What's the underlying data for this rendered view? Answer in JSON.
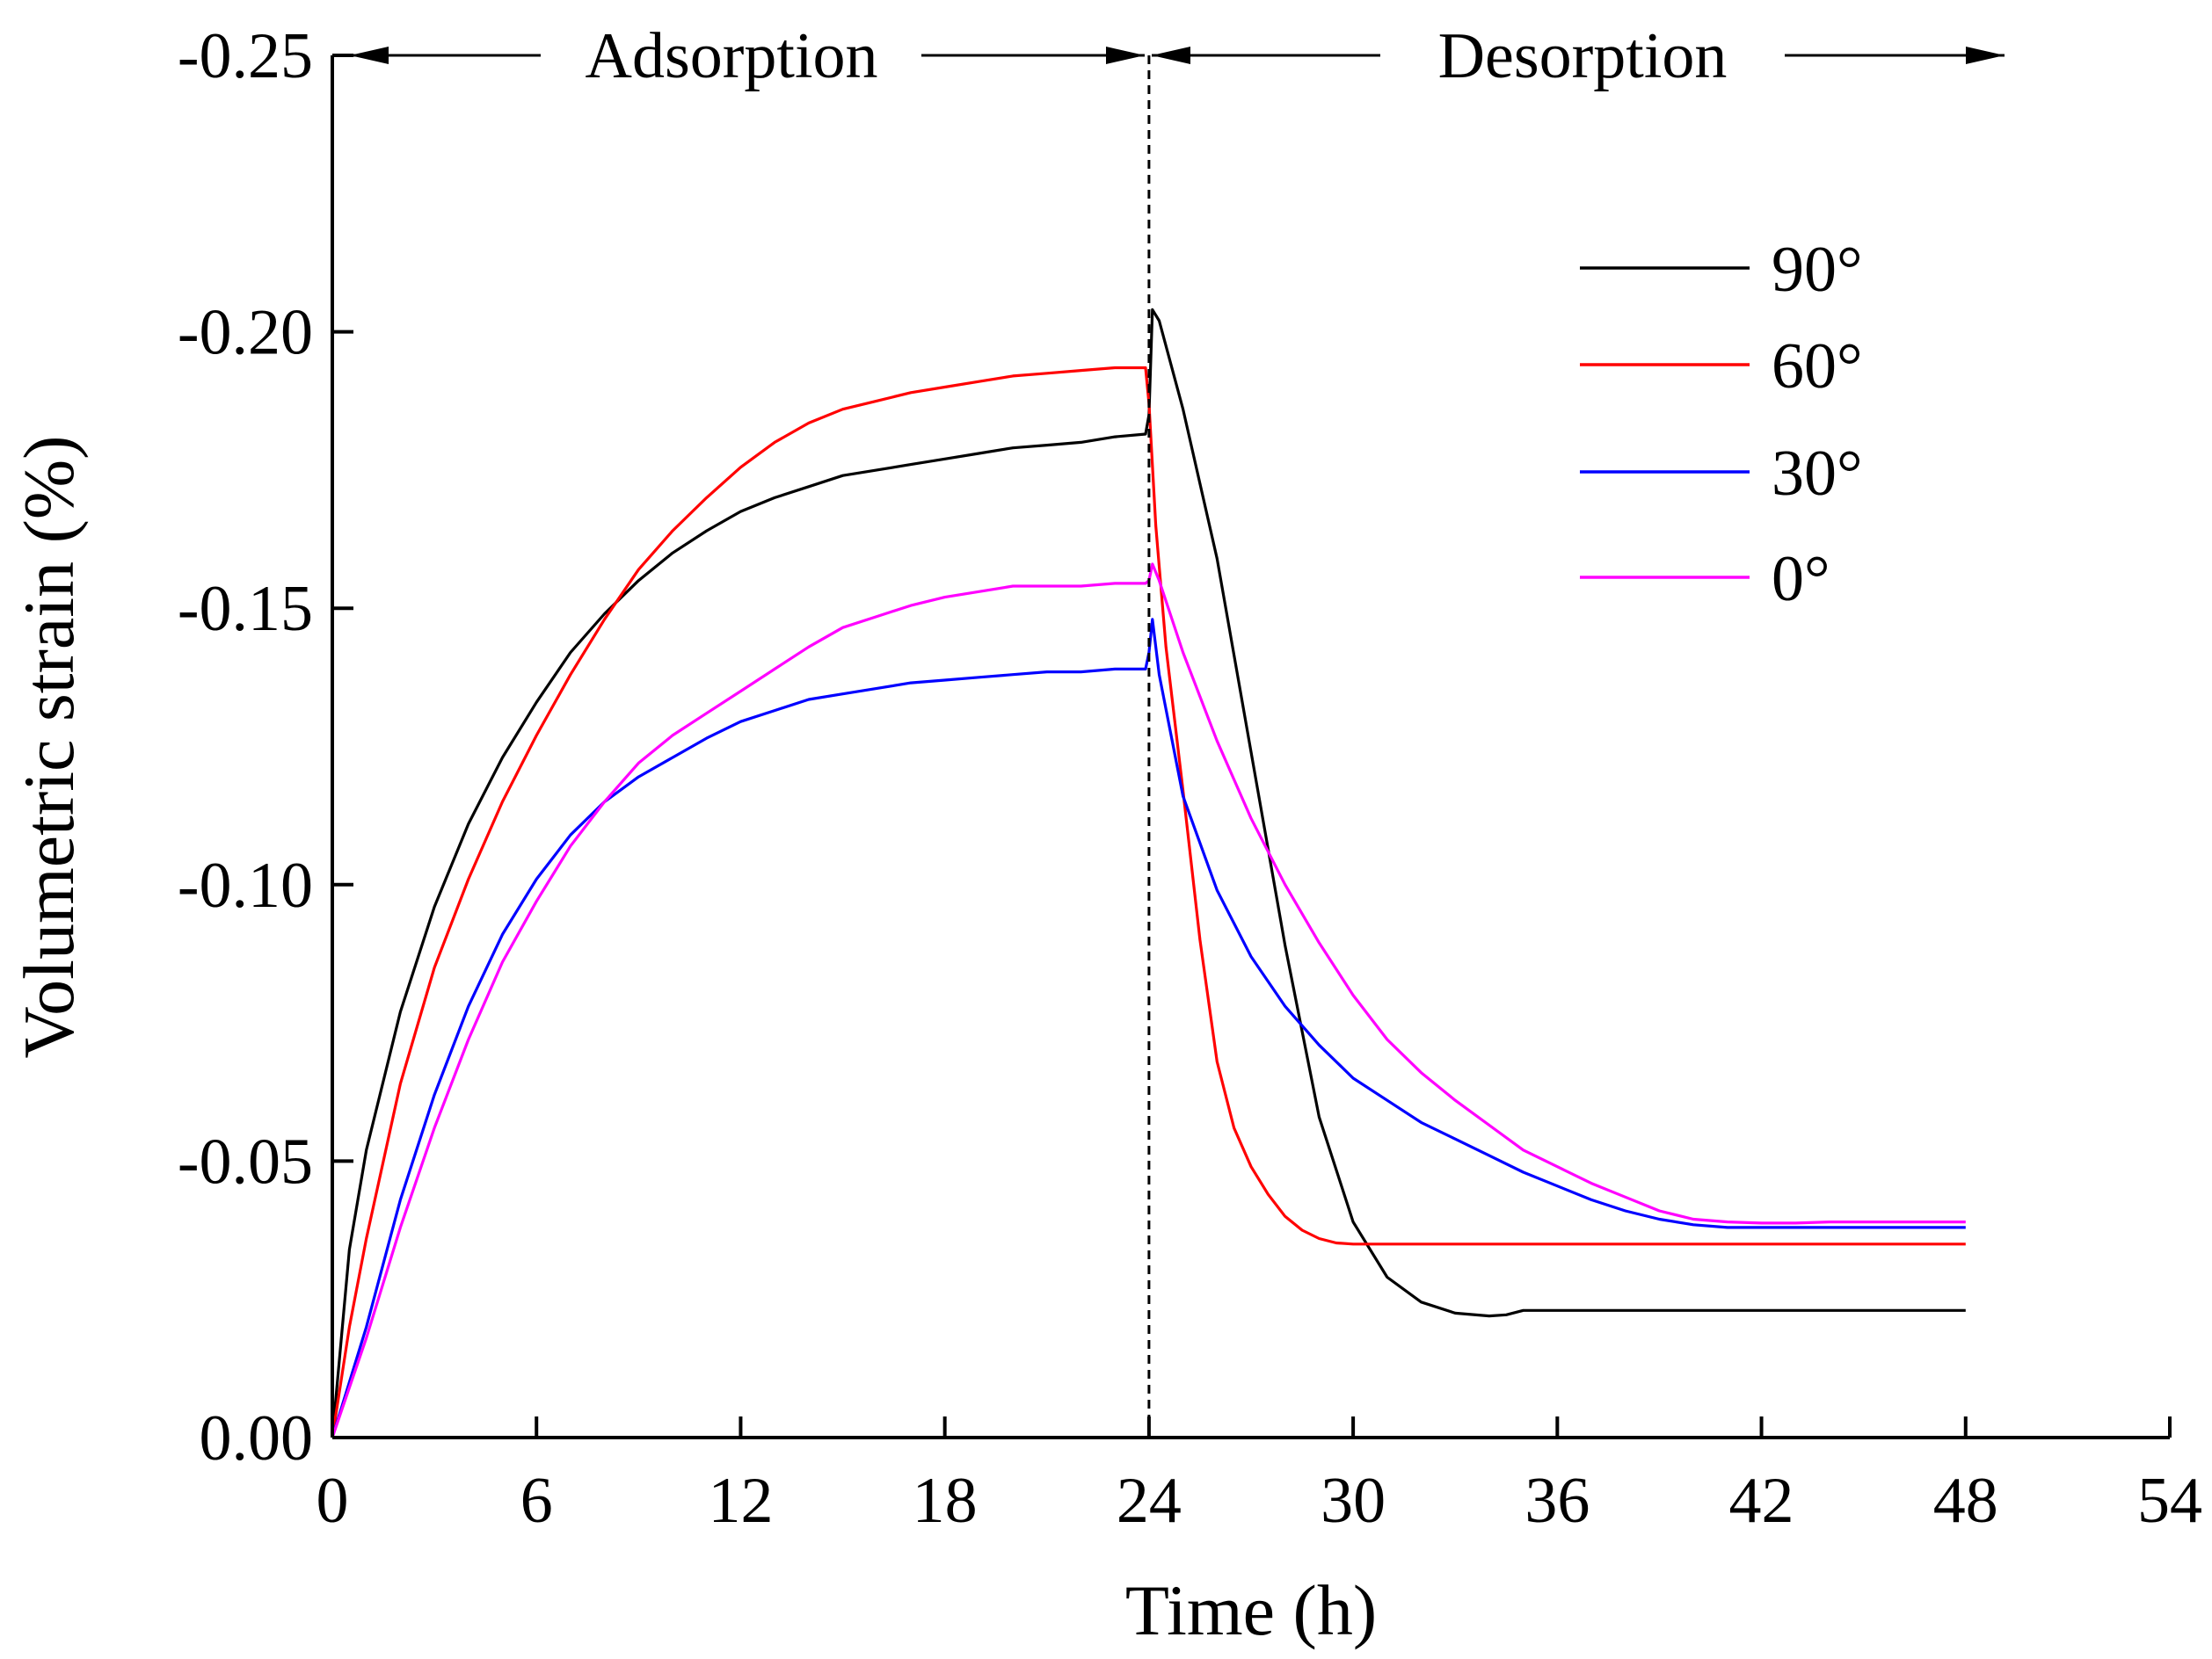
{
  "chart_data": {
    "type": "line",
    "title": "",
    "xlabel": "Time (h)",
    "ylabel": "Volumetric strain (%)",
    "xlim": [
      0,
      54
    ],
    "ylim": [
      0,
      -0.25
    ],
    "xticks": [
      0,
      6,
      12,
      18,
      24,
      30,
      36,
      42,
      48,
      54
    ],
    "xtick_labels": [
      "0",
      "6",
      "12",
      "18",
      "24",
      "30",
      "36",
      "42",
      "48",
      "54"
    ],
    "yticks": [
      0,
      -0.05,
      -0.1,
      -0.15,
      -0.2,
      -0.25
    ],
    "ytick_labels": [
      "0.00",
      "-0.05",
      "-0.10",
      "-0.15",
      "-0.20",
      "-0.25"
    ],
    "grid": false,
    "legend_position": "top-right",
    "annotations": {
      "divider_x": 24,
      "adsorption_label": "Adsorption",
      "desorption_label": "Desorption"
    },
    "series": [
      {
        "name": "90°",
        "color": "#000000",
        "x": [
          0,
          0.5,
          1,
          2,
          3,
          4,
          5,
          6,
          7,
          8,
          9,
          10,
          11,
          12,
          13,
          14,
          15,
          16,
          17,
          18,
          19,
          20,
          21,
          22,
          23,
          23.9,
          24.0,
          24.1,
          24.3,
          25,
          26,
          27,
          28,
          29,
          30,
          31,
          32,
          33,
          34,
          34.5,
          35,
          36,
          40,
          44,
          48
        ],
        "y": [
          0,
          -0.034,
          -0.052,
          -0.077,
          -0.096,
          -0.111,
          -0.123,
          -0.133,
          -0.142,
          -0.149,
          -0.155,
          -0.16,
          -0.164,
          -0.1675,
          -0.17,
          -0.172,
          -0.174,
          -0.175,
          -0.176,
          -0.177,
          -0.178,
          -0.179,
          -0.1795,
          -0.18,
          -0.181,
          -0.1815,
          -0.185,
          -0.204,
          -0.202,
          -0.186,
          -0.159,
          -0.124,
          -0.089,
          -0.058,
          -0.039,
          -0.029,
          -0.0245,
          -0.0225,
          -0.022,
          -0.0222,
          -0.023,
          -0.023,
          -0.023,
          -0.023,
          -0.023
        ]
      },
      {
        "name": "60°",
        "color": "#ff0000",
        "x": [
          0,
          0.5,
          1,
          2,
          3,
          4,
          5,
          6,
          7,
          8,
          9,
          10,
          11,
          12,
          13,
          14,
          15,
          16,
          17,
          18,
          19,
          20,
          21,
          22,
          23,
          23.9,
          24.0,
          24.2,
          24.5,
          25,
          25.5,
          26,
          26.5,
          27,
          27.5,
          28,
          28.5,
          29,
          29.5,
          30,
          31,
          32,
          36,
          40,
          44,
          48
        ],
        "y": [
          0,
          -0.02,
          -0.036,
          -0.064,
          -0.085,
          -0.101,
          -0.115,
          -0.127,
          -0.138,
          -0.148,
          -0.157,
          -0.164,
          -0.17,
          -0.1755,
          -0.18,
          -0.1835,
          -0.186,
          -0.1875,
          -0.189,
          -0.19,
          -0.191,
          -0.192,
          -0.1925,
          -0.193,
          -0.1935,
          -0.1935,
          -0.187,
          -0.165,
          -0.143,
          -0.117,
          -0.09,
          -0.068,
          -0.056,
          -0.049,
          -0.044,
          -0.04,
          -0.0375,
          -0.036,
          -0.0352,
          -0.035,
          -0.035,
          -0.035,
          -0.035,
          -0.035,
          -0.035,
          -0.035
        ]
      },
      {
        "name": "30°",
        "color": "#0000ff",
        "x": [
          0,
          1,
          2,
          3,
          4,
          5,
          6,
          7,
          8,
          9,
          10,
          11,
          12,
          13,
          14,
          15,
          16,
          17,
          18,
          19,
          20,
          21,
          22,
          23,
          23.9,
          24.0,
          24.1,
          24.3,
          25,
          26,
          27,
          28,
          29,
          30,
          31,
          32,
          33,
          34,
          35,
          36,
          37,
          38,
          39,
          40,
          41,
          42,
          43,
          44,
          48
        ],
        "y": [
          0,
          -0.02,
          -0.043,
          -0.062,
          -0.078,
          -0.091,
          -0.101,
          -0.109,
          -0.115,
          -0.1195,
          -0.123,
          -0.1265,
          -0.1295,
          -0.1315,
          -0.1335,
          -0.1345,
          -0.1355,
          -0.1365,
          -0.137,
          -0.1375,
          -0.138,
          -0.1385,
          -0.1385,
          -0.139,
          -0.139,
          -0.142,
          -0.148,
          -0.138,
          -0.116,
          -0.099,
          -0.087,
          -0.078,
          -0.071,
          -0.065,
          -0.061,
          -0.057,
          -0.054,
          -0.051,
          -0.048,
          -0.0455,
          -0.043,
          -0.041,
          -0.0395,
          -0.0385,
          -0.038,
          -0.038,
          -0.038,
          -0.038,
          -0.038
        ]
      },
      {
        "name": "0°",
        "color": "#ff00ff",
        "x": [
          0,
          1,
          2,
          3,
          4,
          5,
          6,
          7,
          8,
          9,
          10,
          11,
          12,
          13,
          14,
          15,
          16,
          17,
          18,
          19,
          20,
          21,
          22,
          23,
          23.9,
          24.0,
          24.1,
          24.3,
          25,
          26,
          27,
          28,
          29,
          30,
          31,
          32,
          33,
          34,
          35,
          36,
          37,
          38,
          39,
          40,
          41,
          42,
          43,
          44,
          48
        ],
        "y": [
          0,
          -0.018,
          -0.038,
          -0.056,
          -0.072,
          -0.086,
          -0.097,
          -0.107,
          -0.115,
          -0.122,
          -0.127,
          -0.131,
          -0.135,
          -0.139,
          -0.143,
          -0.1465,
          -0.1485,
          -0.1505,
          -0.152,
          -0.153,
          -0.154,
          -0.154,
          -0.154,
          -0.1545,
          -0.1545,
          -0.155,
          -0.158,
          -0.155,
          -0.142,
          -0.126,
          -0.112,
          -0.1,
          -0.0895,
          -0.08,
          -0.072,
          -0.066,
          -0.061,
          -0.0565,
          -0.052,
          -0.049,
          -0.046,
          -0.0435,
          -0.041,
          -0.0395,
          -0.039,
          -0.0388,
          -0.0388,
          -0.039,
          -0.039
        ]
      }
    ]
  }
}
